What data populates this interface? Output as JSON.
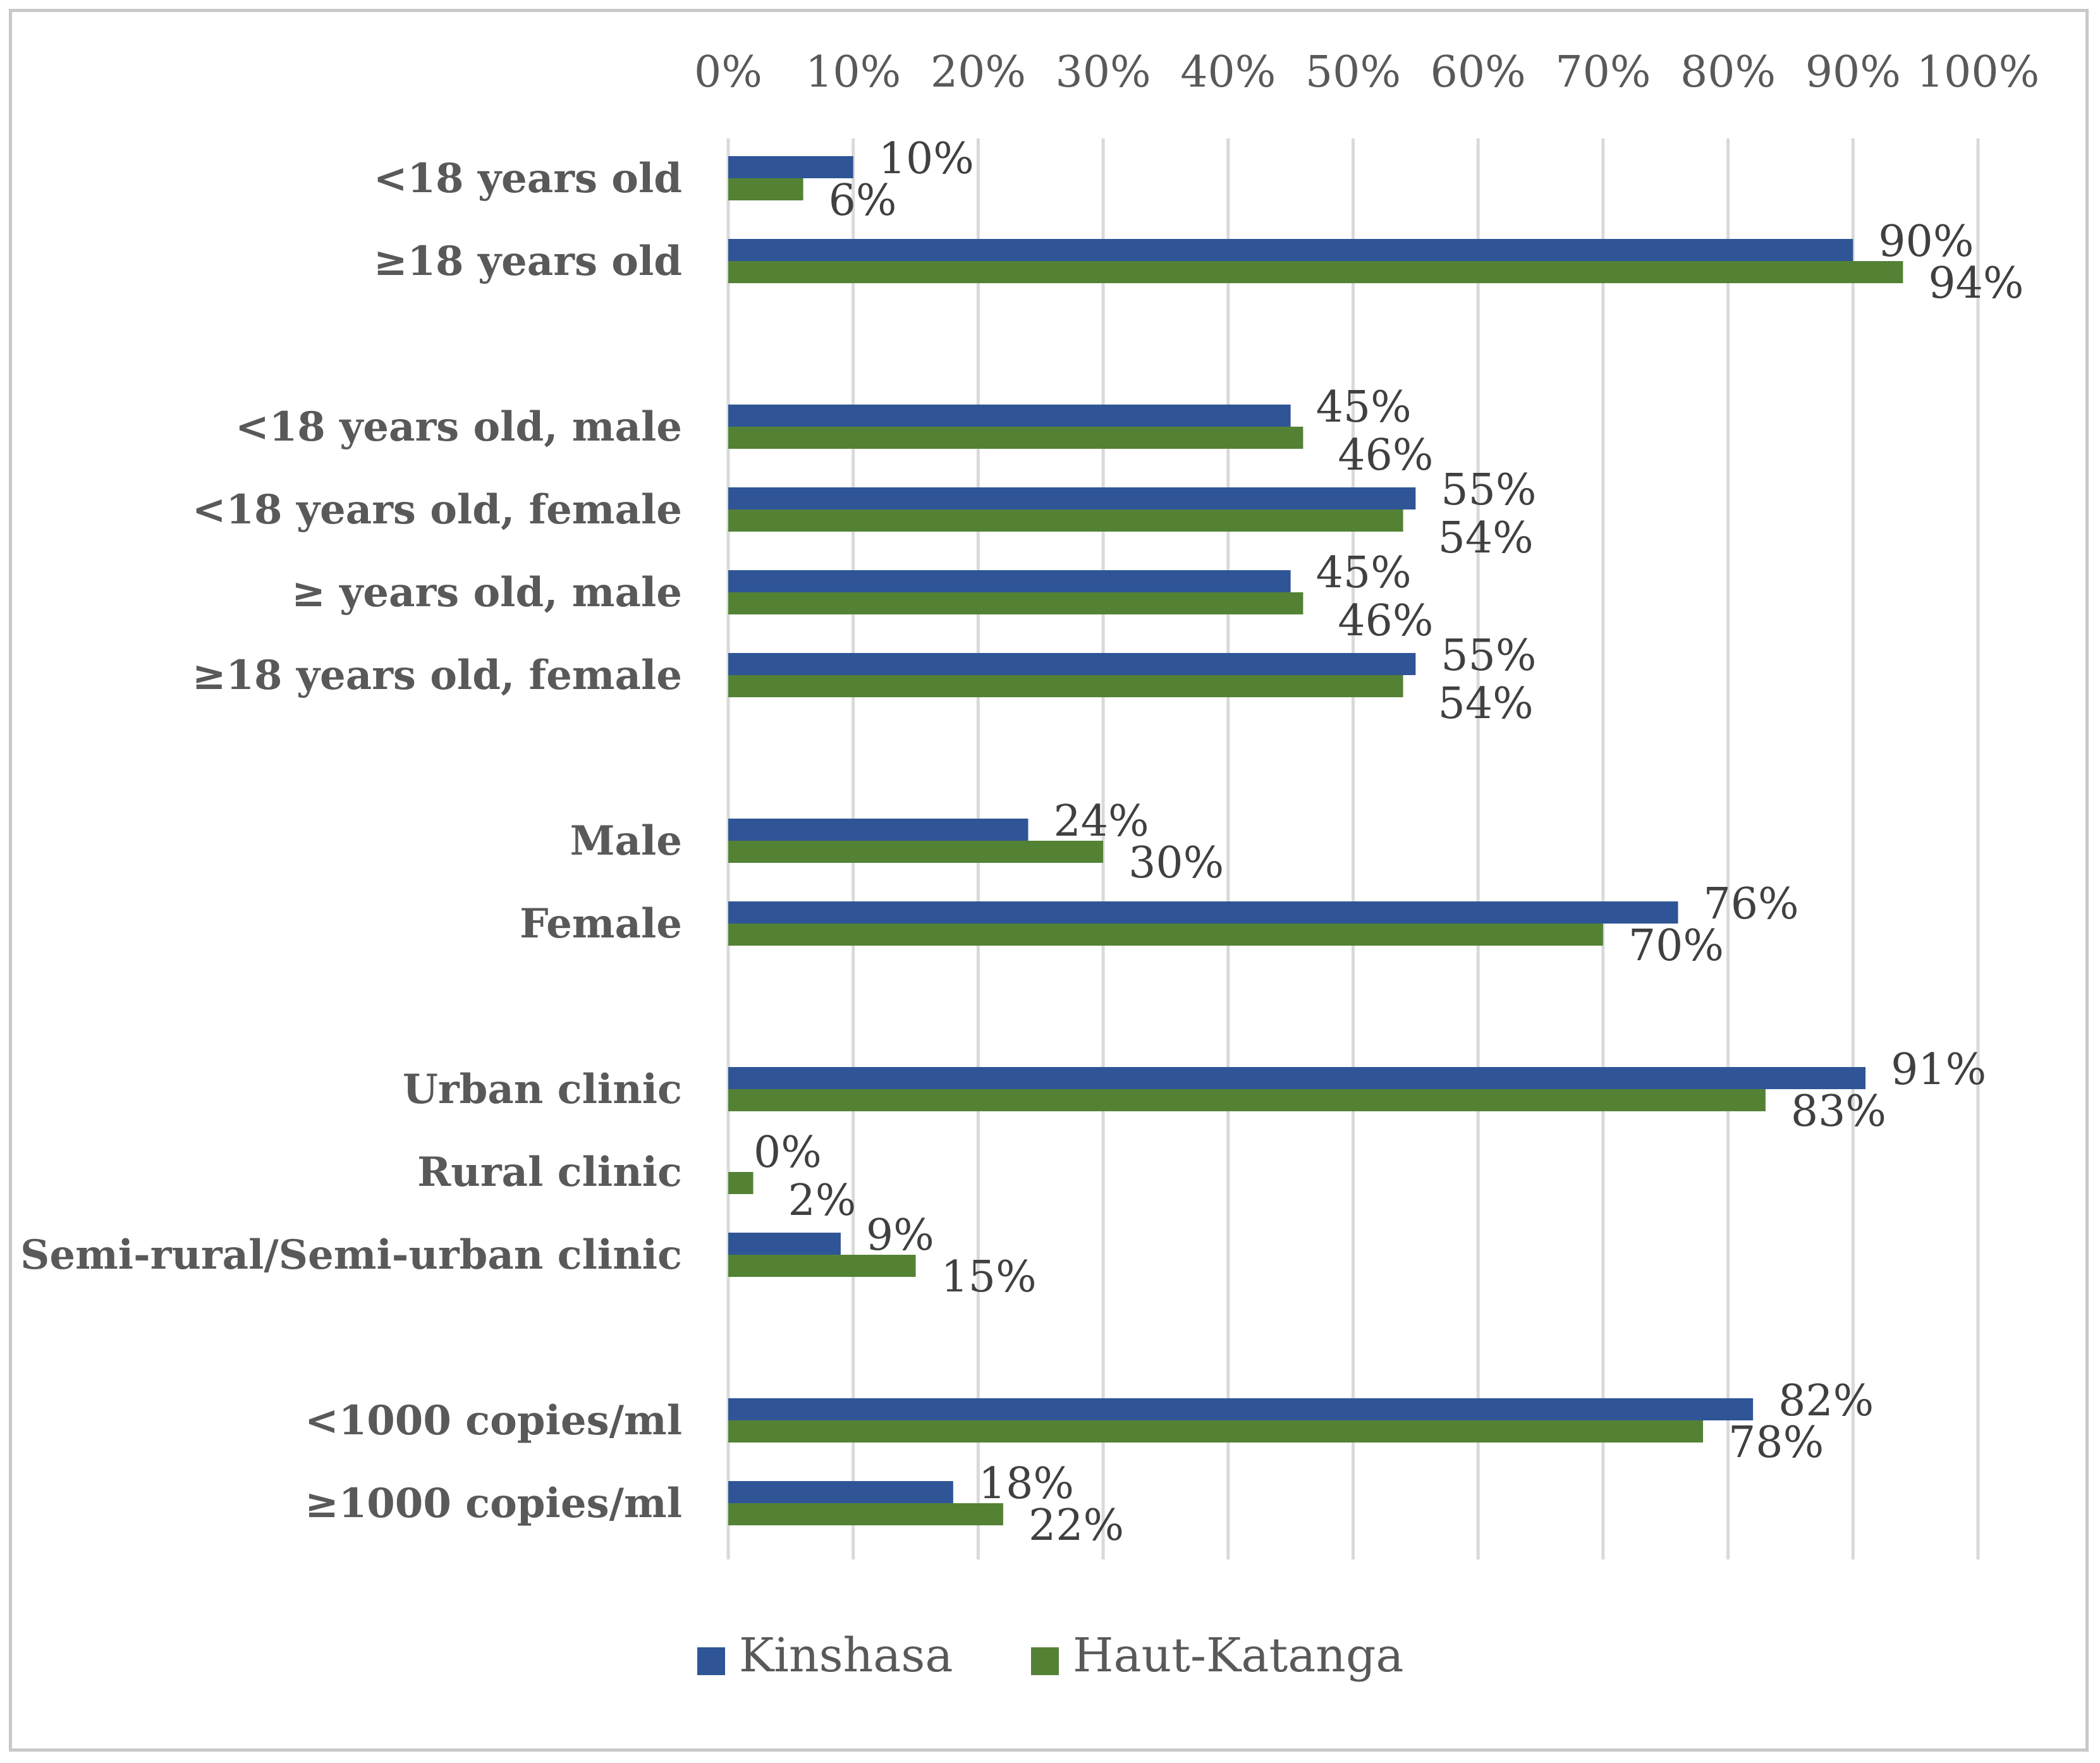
{
  "chart_data": {
    "type": "bar",
    "orientation": "horizontal",
    "title": "",
    "xlabel": "",
    "ylabel": "",
    "xlim": [
      0,
      100
    ],
    "x_ticks": [
      "0%",
      "10%",
      "20%",
      "30%",
      "40%",
      "50%",
      "60%",
      "70%",
      "80%",
      "90%",
      "100%"
    ],
    "grid": "vertical",
    "legend_position": "bottom",
    "categories": [
      "<18 years old",
      "≥18 years old",
      "<18 years old, male",
      "<18 years old, female",
      "≥ years old, male",
      "≥18 years old, female",
      "Male",
      "Female",
      "Urban clinic",
      "Rural clinic",
      "Semi-rural/Semi-urban clinic",
      "<1000 copies/ml",
      "≥1000 copies/ml"
    ],
    "groups": [
      [
        "<18 years old",
        "≥18 years old"
      ],
      [
        "<18 years old, male",
        "<18 years old, female",
        "≥ years old, male",
        "≥18 years old, female"
      ],
      [
        "Male",
        "Female"
      ],
      [
        "Urban clinic",
        "Rural clinic",
        "Semi-rural/Semi-urban clinic"
      ],
      [
        "<1000 copies/ml",
        "≥1000 copies/ml"
      ]
    ],
    "series": [
      {
        "name": "Kinshasa",
        "color": "#2f5597",
        "values": [
          10,
          90,
          45,
          55,
          45,
          55,
          24,
          76,
          91,
          0,
          9,
          82,
          18
        ],
        "labels": [
          "10%",
          "90%",
          "45%",
          "55%",
          "45%",
          "55%",
          "24%",
          "76%",
          "91%",
          "0%",
          "9%",
          "82%",
          "18%"
        ]
      },
      {
        "name": "Haut-Katanga",
        "color": "#548235",
        "values": [
          6,
          94,
          46,
          54,
          46,
          54,
          30,
          70,
          83,
          2,
          15,
          78,
          22
        ],
        "labels": [
          "6%",
          "94%",
          "46%",
          "54%",
          "46%",
          "54%",
          "30%",
          "70%",
          "83%",
          "2%",
          "15%",
          "78%",
          "22%"
        ]
      }
    ]
  }
}
